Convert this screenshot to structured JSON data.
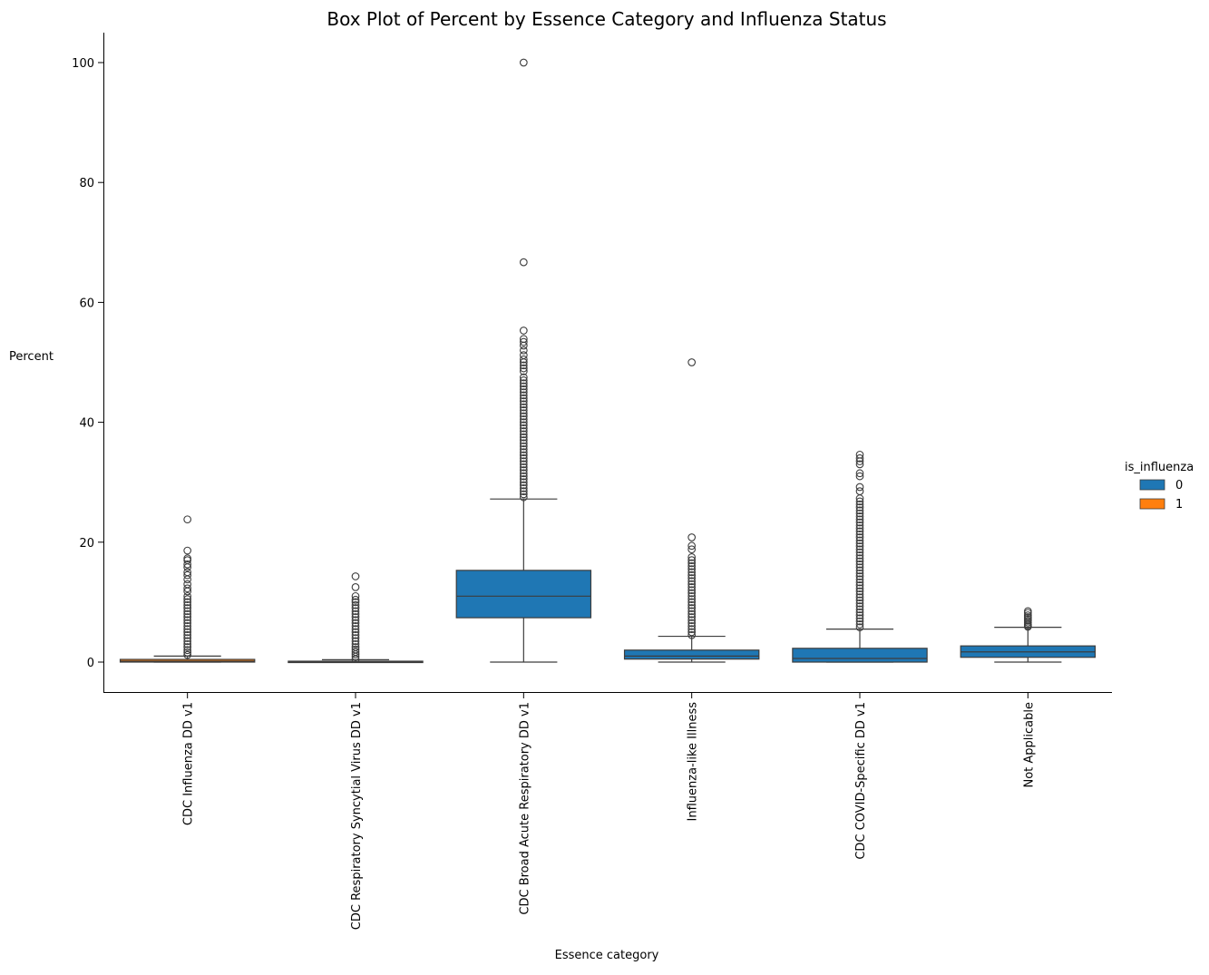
{
  "chart_data": {
    "type": "box",
    "title": "Box Plot of Percent by Essence Category and Influenza Status",
    "xlabel": "Essence category",
    "ylabel": "Percent",
    "ylim": [
      -5,
      105
    ],
    "yticks": [
      0,
      20,
      40,
      60,
      80,
      100
    ],
    "categories": [
      "CDC Influenza DD v1",
      "CDC Respiratory Syncytial Virus DD v1",
      "CDC Broad Acute Respiratory DD v1",
      "Influenza-like Illness",
      "CDC COVID-Specific DD v1",
      "Not Applicable"
    ],
    "legend": {
      "title": "is_influenza",
      "position": "right",
      "entries": [
        {
          "label": "0",
          "color": "#1f77b4"
        },
        {
          "label": "1",
          "color": "#ff7f0e"
        }
      ]
    },
    "boxes": [
      {
        "category": "CDC Influenza DD v1",
        "hue": "1",
        "whisker_low": 0.0,
        "q1": 0.0,
        "median": 0.15,
        "q3": 0.45,
        "whisker_high": 1.0,
        "outliers": [
          1.2,
          1.6,
          2.0,
          2.5,
          3.0,
          3.5,
          4.0,
          4.5,
          5.0,
          5.5,
          6.0,
          6.5,
          7.0,
          7.5,
          8.0,
          8.5,
          9.0,
          9.5,
          10.0,
          10.5,
          11.0,
          11.8,
          12.3,
          13.0,
          13.8,
          14.5,
          15.0,
          15.8,
          16.3,
          17.0,
          17.3,
          18.6,
          23.8
        ]
      },
      {
        "category": "CDC Respiratory Syncytial Virus DD v1",
        "hue": "1",
        "whisker_low": 0.0,
        "q1": 0.0,
        "median": 0.05,
        "q3": 0.15,
        "whisker_high": 0.4,
        "outliers": [
          0.5,
          0.9,
          1.3,
          1.7,
          2.1,
          2.5,
          3.0,
          3.5,
          4.0,
          4.5,
          5.0,
          5.5,
          6.0,
          6.5,
          7.0,
          7.5,
          8.0,
          8.5,
          9.0,
          9.5,
          10.0,
          10.4,
          11.0,
          12.5,
          14.3
        ]
      },
      {
        "category": "CDC Broad Acute Respiratory DD v1",
        "hue": "0",
        "whisker_low": 0.0,
        "q1": 7.4,
        "median": 11.0,
        "q3": 15.3,
        "whisker_high": 27.2,
        "outliers": [
          27.5,
          28,
          28.5,
          29,
          29.5,
          30,
          30.5,
          31,
          31.5,
          32,
          32.5,
          33,
          33.5,
          34,
          34.5,
          35,
          35.5,
          36,
          36.5,
          37,
          37.5,
          38,
          38.5,
          39,
          39.5,
          40,
          40.5,
          41,
          41.5,
          42,
          42.5,
          43,
          43.5,
          44,
          44.5,
          45,
          45.5,
          46,
          46.5,
          47,
          47.5,
          48.5,
          49.0,
          49.5,
          50.0,
          50.5,
          51.2,
          52.0,
          52.8,
          53.4,
          53.9,
          55.3,
          66.7,
          100.0
        ]
      },
      {
        "category": "Influenza-like Illness",
        "hue": "0",
        "whisker_low": 0.0,
        "q1": 0.5,
        "median": 1.0,
        "q3": 2.0,
        "whisker_high": 4.3,
        "outliers": [
          4.5,
          5,
          5.5,
          6,
          6.5,
          7,
          7.5,
          8,
          8.5,
          9,
          9.5,
          10,
          10.5,
          11,
          11.5,
          12,
          12.5,
          13,
          13.5,
          14,
          14.5,
          15,
          15.5,
          16,
          16.5,
          17.0,
          17.5,
          18.8,
          19.4,
          20.8,
          50.0
        ]
      },
      {
        "category": "CDC COVID-Specific DD v1",
        "hue": "0",
        "whisker_low": 0.0,
        "q1": 0.0,
        "median": 0.6,
        "q3": 2.3,
        "whisker_high": 5.5,
        "outliers": [
          5.8,
          6.3,
          6.8,
          7.3,
          7.8,
          8.3,
          8.8,
          9.3,
          9.8,
          10.3,
          10.8,
          11.3,
          11.8,
          12.3,
          12.8,
          13.3,
          13.8,
          14.3,
          14.8,
          15.3,
          15.8,
          16.3,
          16.8,
          17.3,
          17.8,
          18.3,
          18.8,
          19.3,
          19.8,
          20.3,
          20.8,
          21.3,
          21.8,
          22.3,
          22.8,
          23.3,
          23.8,
          24.3,
          24.8,
          25.3,
          25.8,
          26.3,
          26.8,
          27.3,
          28.5,
          29.2,
          31.0,
          31.5,
          33.0,
          33.5,
          34.0,
          34.6
        ]
      },
      {
        "category": "Not Applicable",
        "hue": "0",
        "whisker_low": 0.0,
        "q1": 0.8,
        "median": 1.7,
        "q3": 2.7,
        "whisker_high": 5.8,
        "outliers": [
          5.9,
          6.1,
          6.3,
          6.6,
          6.9,
          7.2,
          7.5,
          7.8,
          8.2,
          8.5
        ]
      }
    ]
  }
}
